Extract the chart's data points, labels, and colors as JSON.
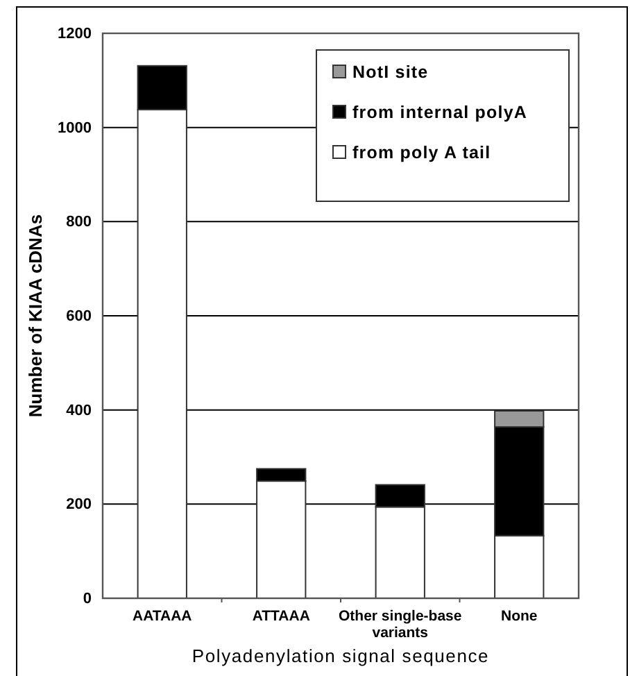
{
  "chart_data": {
    "type": "bar",
    "xlabel": "Polyadenylation signal sequence",
    "ylabel": "Number of KIAA cDNAs",
    "categories": [
      "AATAAA",
      "ATTAAA",
      "Other single-base variants",
      "None"
    ],
    "stacked": true,
    "series": [
      {
        "name": "from poly A tail",
        "color": "#ffffff",
        "values": [
          1038,
          249,
          194,
          133
        ]
      },
      {
        "name": "from internal polyA",
        "color": "#000000",
        "values": [
          93,
          26,
          47,
          231
        ]
      },
      {
        "name": "NotI site",
        "color": "#999999",
        "values": [
          null,
          null,
          null,
          34
        ]
      }
    ],
    "ylim": [
      0,
      1200
    ],
    "yticks": [
      0,
      200,
      400,
      600,
      800,
      1000,
      1200
    ],
    "grid": "y",
    "legend": "top right"
  }
}
